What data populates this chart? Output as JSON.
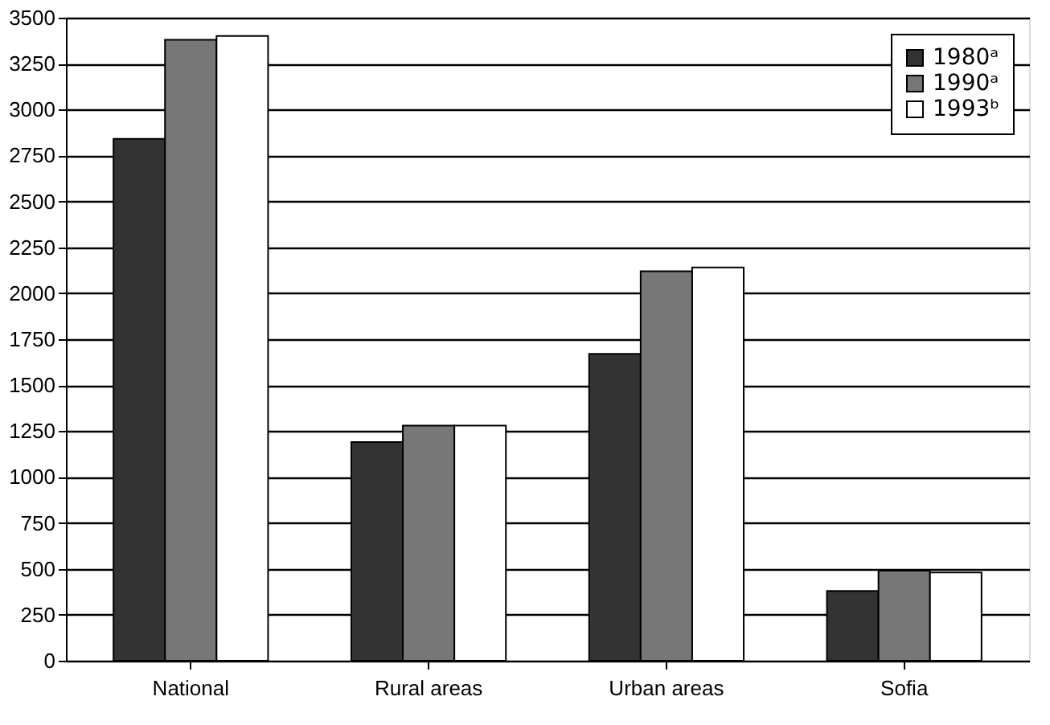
{
  "chart_data": {
    "type": "bar",
    "categories": [
      "National",
      "Rural areas",
      "Urban areas",
      "Sofia"
    ],
    "series": [
      {
        "name": "1980ᵃ",
        "color": "#333333",
        "values": [
          2840,
          1190,
          1670,
          380
        ]
      },
      {
        "name": "1990ᵃ",
        "color": "#777777",
        "values": [
          3380,
          1280,
          2120,
          490
        ]
      },
      {
        "name": "1993ᵇ",
        "color": "#ffffff",
        "values": [
          3400,
          1280,
          2140,
          480
        ]
      }
    ],
    "ylim": [
      0,
      3500
    ],
    "yticks": [
      0,
      250,
      500,
      750,
      1000,
      1250,
      1500,
      1750,
      2000,
      2250,
      2500,
      2750,
      3000,
      3250,
      3500
    ],
    "grid": "y",
    "legend": "top right"
  }
}
